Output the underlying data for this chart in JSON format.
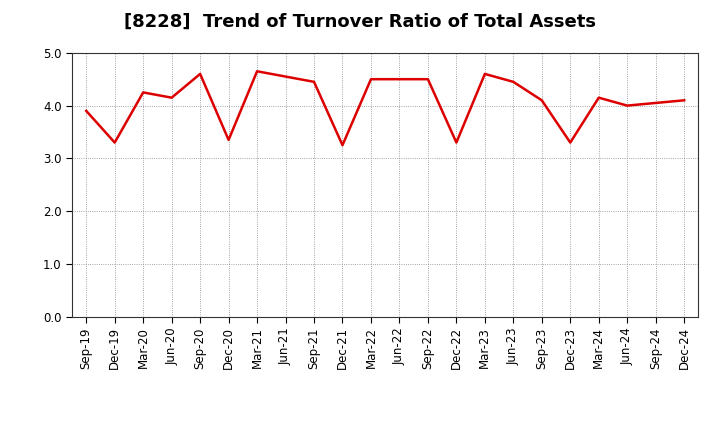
{
  "title": "[8228]  Trend of Turnover Ratio of Total Assets",
  "labels": [
    "Sep-19",
    "Dec-19",
    "Mar-20",
    "Jun-20",
    "Sep-20",
    "Dec-20",
    "Mar-21",
    "Jun-21",
    "Sep-21",
    "Dec-21",
    "Mar-22",
    "Jun-22",
    "Sep-22",
    "Dec-22",
    "Mar-23",
    "Jun-23",
    "Sep-23",
    "Dec-23",
    "Mar-24",
    "Jun-24",
    "Sep-24",
    "Dec-24"
  ],
  "values": [
    3.9,
    3.3,
    4.25,
    4.15,
    4.6,
    3.35,
    4.65,
    4.55,
    4.45,
    3.25,
    4.5,
    4.5,
    4.5,
    3.3,
    4.6,
    4.45,
    4.1,
    3.3,
    4.15,
    4.0,
    4.05,
    4.1
  ],
  "line_color": "#dd0000",
  "line_width": 1.8,
  "ylim": [
    0.0,
    5.0
  ],
  "yticks": [
    0.0,
    1.0,
    2.0,
    3.0,
    4.0,
    5.0
  ],
  "grid_color": "#888888",
  "title_fontsize": 13,
  "tick_fontsize": 8.5,
  "background_color": "#ffffff"
}
